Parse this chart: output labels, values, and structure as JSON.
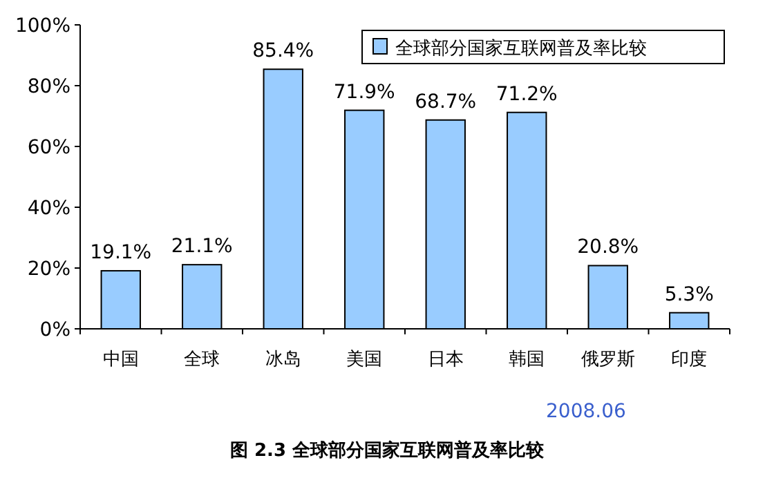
{
  "chart_data": {
    "type": "bar",
    "categories": [
      "中国",
      "全球",
      "冰岛",
      "美国",
      "日本",
      "韩国",
      "俄罗斯",
      "印度"
    ],
    "series": [
      {
        "name": "全球部分国家互联网普及率比较",
        "color": "#99ccff",
        "values": [
          19.1,
          21.1,
          85.4,
          71.9,
          68.7,
          71.2,
          20.8,
          5.3
        ],
        "value_labels": [
          "19.1%",
          "21.1%",
          "85.4%",
          "71.9%",
          "68.7%",
          "71.2%",
          "20.8%",
          "5.3%"
        ]
      }
    ],
    "ylim": [
      0,
      100
    ],
    "yticks": [
      {
        "value": 0,
        "label": "0%"
      },
      {
        "value": 20,
        "label": "20%"
      },
      {
        "value": 40,
        "label": "40%"
      },
      {
        "value": 60,
        "label": "60%"
      },
      {
        "value": 80,
        "label": "80%"
      },
      {
        "value": 100,
        "label": "100%"
      }
    ],
    "legend": "top right",
    "grid": false,
    "annotations": [
      "2008.06",
      "图 2.3    全球部分国家互联网普及率比较"
    ]
  }
}
